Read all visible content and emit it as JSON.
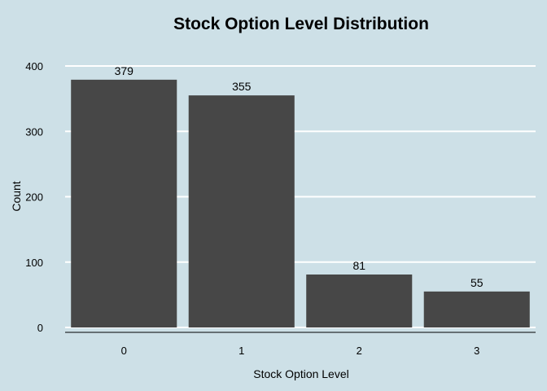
{
  "chart_data": {
    "type": "bar",
    "title": "Stock Option Level Distribution",
    "xlabel": "Stock Option Level",
    "ylabel": "Count",
    "categories": [
      "0",
      "1",
      "2",
      "3"
    ],
    "values": [
      379,
      355,
      81,
      55
    ],
    "data_labels": [
      "379",
      "355",
      "81",
      "55"
    ],
    "ylim": [
      0,
      400
    ],
    "yticks": [
      0,
      100,
      200,
      300,
      400
    ],
    "ytick_labels": [
      "0",
      "100",
      "200",
      "300",
      "400"
    ],
    "grid": true,
    "legend": "none",
    "colors": {
      "background": "#cde0e7",
      "bar": "#474747",
      "grid": "#ffffff"
    }
  }
}
